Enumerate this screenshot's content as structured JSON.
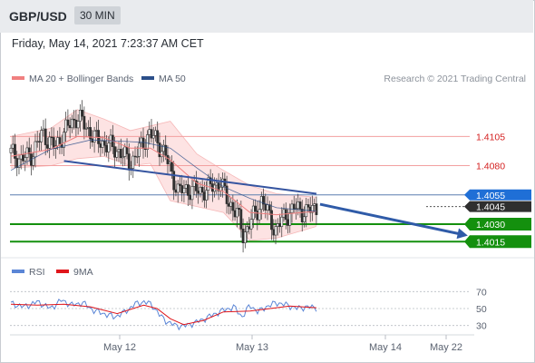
{
  "header": {
    "symbol": "GBP/USD",
    "timeframe": "30 MIN",
    "datetime": "Friday, May 14, 2021 7:23:37 AM CET"
  },
  "legend": {
    "ma20": "MA 20 + Bollinger Bands",
    "ma50": "MA 50",
    "credit": "Research © 2021 Trading Central"
  },
  "rsi_legend": {
    "rsi": "RSI",
    "ma": "9MA"
  },
  "colors": {
    "ma20": "#f08080",
    "ma50": "#2c4f8a",
    "rsi": "#5b86d6",
    "rsi_ma": "#e0161b",
    "support": "#14900e",
    "resistance": "#d42020",
    "last_price": "#2f2f2f",
    "pivot": "#1f6fd6",
    "bollinger_fill": "#fde3e3"
  },
  "chart_data": [
    {
      "type": "candlestick",
      "title": "GBP/USD 30 MIN",
      "x_ticks": [
        "May 12",
        "May 13",
        "May 14",
        "May 22"
      ],
      "ylim": [
        1.4002,
        1.4148
      ],
      "grid": false,
      "legend_position": "top-left",
      "price_levels": [
        {
          "name": "resistance-2",
          "value": 1.4105,
          "label": "1.4105",
          "role": "resistance"
        },
        {
          "name": "resistance-1",
          "value": 1.408,
          "label": "1.4080",
          "role": "resistance"
        },
        {
          "name": "pivot",
          "value": 1.4055,
          "label": "1.4055",
          "role": "pivot"
        },
        {
          "name": "last",
          "value": 1.4045,
          "label": "1.4045",
          "role": "last"
        },
        {
          "name": "support-1",
          "value": 1.403,
          "label": "1.4030",
          "role": "support"
        },
        {
          "name": "support-2",
          "value": 1.4015,
          "label": "1.4015",
          "role": "support"
        }
      ],
      "trendline": {
        "from": [
          0.4,
          1.4084
        ],
        "to": [
          2.3,
          1.4056
        ]
      },
      "forecast_arrow": {
        "from": [
          2.3,
          1.4047
        ],
        "to": [
          2.6,
          1.4018
        ]
      },
      "anchors": [
        [
          0.0,
          1.4091
        ],
        [
          0.08,
          1.4085
        ],
        [
          0.16,
          1.409
        ],
        [
          0.24,
          1.4108
        ],
        [
          0.33,
          1.4095
        ],
        [
          0.42,
          1.4112
        ],
        [
          0.5,
          1.4122
        ],
        [
          0.56,
          1.4114
        ],
        [
          0.64,
          1.4102
        ],
        [
          0.72,
          1.4098
        ],
        [
          0.82,
          1.4092
        ],
        [
          0.9,
          1.4082
        ],
        [
          0.98,
          1.4096
        ],
        [
          1.04,
          1.4108
        ],
        [
          1.1,
          1.4101
        ],
        [
          1.16,
          1.409
        ],
        [
          1.2,
          1.4076
        ],
        [
          1.26,
          1.4058
        ],
        [
          1.34,
          1.406
        ],
        [
          1.42,
          1.4058
        ],
        [
          1.5,
          1.4061
        ],
        [
          1.58,
          1.4066
        ],
        [
          1.62,
          1.4052
        ],
        [
          1.7,
          1.404
        ],
        [
          1.75,
          1.402
        ],
        [
          1.8,
          1.4032
        ],
        [
          1.85,
          1.404
        ],
        [
          1.89,
          1.4052
        ],
        [
          1.93,
          1.404
        ],
        [
          1.99,
          1.4025
        ],
        [
          2.06,
          1.4036
        ],
        [
          2.14,
          1.4044
        ],
        [
          2.22,
          1.404
        ],
        [
          2.3,
          1.4045
        ]
      ],
      "ma20": [
        [
          0.0,
          1.4088
        ],
        [
          0.3,
          1.4094
        ],
        [
          0.5,
          1.4105
        ],
        [
          0.7,
          1.4104
        ],
        [
          0.9,
          1.4095
        ],
        [
          1.05,
          1.4095
        ],
        [
          1.2,
          1.4085
        ],
        [
          1.4,
          1.4065
        ],
        [
          1.6,
          1.4058
        ],
        [
          1.8,
          1.404
        ],
        [
          2.0,
          1.4038
        ],
        [
          2.2,
          1.404
        ],
        [
          2.3,
          1.4041
        ]
      ],
      "ma50": [
        [
          0.0,
          1.4076
        ],
        [
          0.3,
          1.4094
        ],
        [
          0.6,
          1.4102
        ],
        [
          1.0,
          1.41
        ],
        [
          1.2,
          1.4095
        ],
        [
          1.4,
          1.4078
        ],
        [
          1.6,
          1.4062
        ],
        [
          1.8,
          1.4052
        ],
        [
          2.0,
          1.4044
        ],
        [
          2.3,
          1.4041
        ]
      ],
      "bollinger_upper": [
        [
          0.0,
          1.4105
        ],
        [
          0.3,
          1.4112
        ],
        [
          0.5,
          1.4128
        ],
        [
          0.7,
          1.412
        ],
        [
          0.9,
          1.411
        ],
        [
          1.05,
          1.4114
        ],
        [
          1.2,
          1.4118
        ],
        [
          1.4,
          1.409
        ],
        [
          1.6,
          1.4076
        ],
        [
          1.8,
          1.4063
        ],
        [
          2.0,
          1.4056
        ],
        [
          2.3,
          1.4053
        ]
      ],
      "bollinger_lower": [
        [
          0.0,
          1.4078
        ],
        [
          0.3,
          1.408
        ],
        [
          0.5,
          1.4086
        ],
        [
          0.7,
          1.4088
        ],
        [
          0.9,
          1.408
        ],
        [
          1.05,
          1.4082
        ],
        [
          1.2,
          1.405
        ],
        [
          1.4,
          1.4045
        ],
        [
          1.6,
          1.404
        ],
        [
          1.8,
          1.4016
        ],
        [
          2.0,
          1.4018
        ],
        [
          2.3,
          1.4028
        ]
      ]
    },
    {
      "type": "line",
      "title": "RSI",
      "y_ticks": [
        70,
        50,
        30
      ],
      "ylim": [
        20,
        80
      ],
      "series": [
        {
          "name": "RSI",
          "values": [
            [
              0.0,
              56
            ],
            [
              0.1,
              52
            ],
            [
              0.2,
              58
            ],
            [
              0.3,
              50
            ],
            [
              0.38,
              60
            ],
            [
              0.46,
              54
            ],
            [
              0.54,
              57
            ],
            [
              0.62,
              48
            ],
            [
              0.7,
              44
            ],
            [
              0.78,
              40
            ],
            [
              0.86,
              46
            ],
            [
              0.93,
              55
            ],
            [
              1.0,
              58
            ],
            [
              1.06,
              55
            ],
            [
              1.12,
              42
            ],
            [
              1.18,
              34
            ],
            [
              1.24,
              30
            ],
            [
              1.3,
              29
            ],
            [
              1.38,
              33
            ],
            [
              1.46,
              38
            ],
            [
              1.54,
              44
            ],
            [
              1.6,
              48
            ],
            [
              1.68,
              52
            ],
            [
              1.74,
              40
            ],
            [
              1.8,
              54
            ],
            [
              1.86,
              46
            ],
            [
              1.92,
              52
            ],
            [
              2.0,
              57
            ],
            [
              2.08,
              54
            ],
            [
              2.16,
              50
            ],
            [
              2.22,
              52
            ],
            [
              2.3,
              51
            ]
          ]
        },
        {
          "name": "9MA",
          "values": [
            [
              0.0,
              55
            ],
            [
              0.2,
              54
            ],
            [
              0.4,
              55
            ],
            [
              0.6,
              52
            ],
            [
              0.8,
              44
            ],
            [
              1.0,
              54
            ],
            [
              1.1,
              50
            ],
            [
              1.2,
              38
            ],
            [
              1.3,
              31
            ],
            [
              1.45,
              36
            ],
            [
              1.6,
              46
            ],
            [
              1.8,
              47
            ],
            [
              1.95,
              50
            ],
            [
              2.1,
              53
            ],
            [
              2.3,
              51
            ]
          ]
        }
      ]
    }
  ]
}
